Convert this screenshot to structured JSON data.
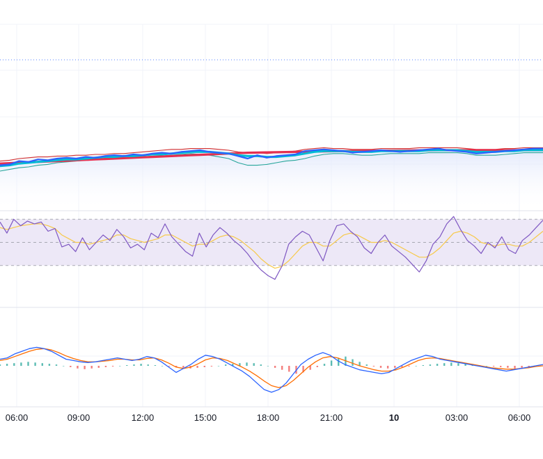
{
  "chart_data": {
    "type": "line",
    "x_tick_labels": [
      "06:00",
      "09:00",
      "12:00",
      "15:00",
      "18:00",
      "21:00",
      "10",
      "03:00",
      "06:00"
    ],
    "bold_tick_labels": [
      "10"
    ],
    "grid": true,
    "panes": [
      {
        "name": "price",
        "bands": [
          {
            "fill": "#eef1fb"
          }
        ],
        "series": [
          {
            "color": "#2962ff",
            "width": 2.2,
            "values": [
              0.52,
              0.53,
              0.57,
              0.56,
              0.59,
              0.58,
              0.6,
              0.61,
              0.6,
              0.62,
              0.61,
              0.63,
              0.64,
              0.63,
              0.65,
              0.64,
              0.66,
              0.67,
              0.66,
              0.68,
              0.69,
              0.7,
              0.68,
              0.67,
              0.66,
              0.63,
              0.6,
              0.64,
              0.61,
              0.63,
              0.64,
              0.65,
              0.69,
              0.7,
              0.71,
              0.7,
              0.69,
              0.67,
              0.68,
              0.69,
              0.7,
              0.69,
              0.68,
              0.69,
              0.7,
              0.71,
              0.72,
              0.7,
              0.69,
              0.68,
              0.66,
              0.67,
              0.68,
              0.69,
              0.7,
              0.71,
              0.72,
              0.72
            ]
          },
          {
            "color": "#00bcd4",
            "width": 3,
            "values": [
              0.51,
              0.52,
              0.54,
              0.55,
              0.56,
              0.57,
              0.58,
              0.59,
              0.59,
              0.6,
              0.61,
              0.62,
              0.62,
              0.63,
              0.63,
              0.64,
              0.65,
              0.65,
              0.66,
              0.67,
              0.68,
              0.68,
              0.68,
              0.67,
              0.66,
              0.64,
              0.63,
              0.63,
              0.62,
              0.62,
              0.63,
              0.64,
              0.66,
              0.68,
              0.69,
              0.69,
              0.69,
              0.68,
              0.68,
              0.68,
              0.69,
              0.69,
              0.69,
              0.69,
              0.69,
              0.7,
              0.7,
              0.7,
              0.7,
              0.69,
              0.68,
              0.68,
              0.68,
              0.69,
              0.69,
              0.7,
              0.7,
              0.7
            ]
          },
          {
            "color": "#d32f2f",
            "width": 1.1,
            "values": [
              0.57,
              0.58,
              0.6,
              0.61,
              0.62,
              0.62,
              0.63,
              0.63,
              0.64,
              0.64,
              0.65,
              0.65,
              0.66,
              0.66,
              0.67,
              0.68,
              0.69,
              0.7,
              0.71,
              0.71,
              0.72,
              0.72,
              0.72,
              0.71,
              0.7,
              0.68,
              0.67,
              0.67,
              0.66,
              0.67,
              0.68,
              0.69,
              0.71,
              0.72,
              0.73,
              0.72,
              0.72,
              0.71,
              0.71,
              0.71,
              0.72,
              0.72,
              0.72,
              0.72,
              0.73,
              0.73,
              0.73,
              0.73,
              0.73,
              0.72,
              0.71,
              0.71,
              0.71,
              0.72,
              0.72,
              0.73,
              0.73,
              0.73
            ]
          },
          {
            "color": "#26a69a",
            "width": 1.1,
            "values": [
              0.45,
              0.47,
              0.49,
              0.5,
              0.52,
              0.53,
              0.55,
              0.56,
              0.57,
              0.58,
              0.59,
              0.6,
              0.6,
              0.61,
              0.61,
              0.62,
              0.63,
              0.63,
              0.64,
              0.65,
              0.66,
              0.65,
              0.64,
              0.62,
              0.6,
              0.55,
              0.52,
              0.52,
              0.53,
              0.55,
              0.57,
              0.58,
              0.6,
              0.63,
              0.65,
              0.66,
              0.66,
              0.65,
              0.64,
              0.64,
              0.65,
              0.66,
              0.66,
              0.66,
              0.66,
              0.67,
              0.67,
              0.67,
              0.67,
              0.66,
              0.64,
              0.64,
              0.64,
              0.65,
              0.66,
              0.67,
              0.67,
              0.67
            ]
          },
          {
            "color": "#e53050",
            "width": 3.2,
            "values": [
              0.54,
              0.545,
              0.55,
              0.555,
              0.56,
              0.565,
              0.57,
              0.575,
              0.58,
              0.585,
              0.59,
              0.595,
              0.6,
              0.605,
              0.61,
              0.615,
              0.62,
              0.625,
              0.63,
              0.635,
              0.64,
              0.645,
              0.65,
              0.655,
              0.66,
              0.665,
              0.67,
              0.672,
              0.674,
              0.676,
              0.678,
              0.68,
              0.682,
              0.684,
              0.686,
              0.688,
              0.69,
              0.691,
              0.692,
              0.693,
              0.694,
              0.695,
              0.696,
              0.697,
              0.698,
              0.699,
              0.7,
              0.7,
              0.7,
              0.7,
              0.7,
              0.7,
              0.7,
              0.7,
              0.7,
              0.7,
              0.7,
              0.7
            ]
          }
        ],
        "ylim": [
          0,
          1
        ]
      },
      {
        "name": "oscillator",
        "band": {
          "low": 25,
          "high": 75,
          "fill": "#ede8f7"
        },
        "series": [
          {
            "color": "#7e57c2",
            "width": 1.2,
            "values": [
              72,
              60,
              75,
              68,
              73,
              70,
              72,
              62,
              65,
              45,
              48,
              40,
              55,
              42,
              50,
              58,
              52,
              64,
              56,
              44,
              48,
              42,
              60,
              55,
              70,
              56,
              48,
              40,
              35,
              60,
              45,
              58,
              66,
              60,
              52,
              46,
              38,
              28,
              20,
              14,
              10,
              24,
              48,
              56,
              62,
              58,
              44,
              30,
              52,
              68,
              70,
              62,
              56,
              44,
              38,
              50,
              58,
              46,
              40,
              34,
              26,
              18,
              30,
              48,
              56,
              70,
              78,
              64,
              52,
              46,
              38,
              50,
              44,
              56,
              42,
              38,
              52,
              58,
              66,
              74
            ]
          },
          {
            "color": "#f7c948",
            "width": 1.2,
            "values": [
              66,
              64,
              66,
              68,
              69,
              70,
              70,
              68,
              65,
              58,
              54,
              50,
              50,
              48,
              50,
              52,
              54,
              58,
              58,
              54,
              52,
              50,
              52,
              54,
              58,
              58,
              54,
              50,
              46,
              48,
              48,
              52,
              56,
              58,
              56,
              52,
              46,
              40,
              32,
              26,
              22,
              24,
              30,
              38,
              46,
              50,
              50,
              46,
              46,
              52,
              58,
              60,
              58,
              54,
              50,
              50,
              52,
              50,
              46,
              42,
              38,
              34,
              34,
              38,
              44,
              52,
              60,
              62,
              60,
              56,
              50,
              48,
              46,
              48,
              48,
              46,
              46,
              50,
              56,
              62
            ]
          }
        ],
        "ylim": [
          0,
          100
        ]
      },
      {
        "name": "histogram-oscillator",
        "histogram": [
          0.02,
          0.03,
          0.04,
          0.05,
          0.06,
          0.05,
          0.04,
          0.03,
          0.02,
          0.0,
          -0.02,
          -0.04,
          -0.05,
          -0.04,
          -0.03,
          -0.02,
          -0.01,
          0.0,
          0.01,
          0.02,
          0.03,
          0.02,
          0.01,
          0.0,
          -0.01,
          -0.02,
          -0.03,
          -0.04,
          -0.03,
          -0.02,
          -0.01,
          0.0,
          0.02,
          0.03,
          0.04,
          0.05,
          0.04,
          0.02,
          0.0,
          -0.03,
          -0.06,
          -0.09,
          -0.12,
          -0.1,
          -0.06,
          -0.02,
          0.03,
          0.08,
          0.12,
          0.14,
          0.1,
          0.06,
          0.02,
          -0.01,
          -0.03,
          -0.04,
          -0.03,
          -0.02,
          -0.01,
          0.0,
          0.01,
          0.02,
          0.03,
          0.04,
          0.05,
          0.04,
          0.03,
          0.02,
          0.01,
          0.0,
          -0.01,
          -0.02,
          -0.03,
          -0.04,
          -0.03,
          -0.02,
          -0.01,
          0.0
        ],
        "histogram_colors": {
          "up": "#26a69a",
          "down": "#ef5350"
        },
        "series": [
          {
            "color": "#2962ff",
            "width": 1.3,
            "values": [
              0.1,
              0.12,
              0.18,
              0.22,
              0.26,
              0.28,
              0.26,
              0.22,
              0.16,
              0.1,
              0.08,
              0.06,
              0.05,
              0.06,
              0.08,
              0.1,
              0.12,
              0.1,
              0.08,
              0.1,
              0.14,
              0.12,
              0.06,
              -0.02,
              -0.1,
              -0.04,
              0.02,
              0.1,
              0.16,
              0.14,
              0.1,
              0.04,
              -0.02,
              -0.08,
              -0.16,
              -0.26,
              -0.36,
              -0.4,
              -0.36,
              -0.26,
              -0.12,
              0.02,
              0.1,
              0.16,
              0.2,
              0.16,
              0.08,
              0.02,
              -0.02,
              -0.06,
              -0.08,
              -0.1,
              -0.12,
              -0.1,
              -0.04,
              0.02,
              0.08,
              0.12,
              0.16,
              0.14,
              0.1,
              0.08,
              0.06,
              0.04,
              0.02,
              0.0,
              -0.02,
              -0.04,
              -0.06,
              -0.08,
              -0.06,
              -0.04,
              -0.02,
              0.0,
              0.02
            ]
          },
          {
            "color": "#ff6d00",
            "width": 1.3,
            "values": [
              0.08,
              0.1,
              0.14,
              0.18,
              0.22,
              0.25,
              0.26,
              0.24,
              0.2,
              0.15,
              0.11,
              0.08,
              0.06,
              0.06,
              0.07,
              0.08,
              0.1,
              0.1,
              0.09,
              0.09,
              0.11,
              0.12,
              0.09,
              0.04,
              -0.02,
              -0.04,
              -0.02,
              0.03,
              0.09,
              0.12,
              0.11,
              0.08,
              0.03,
              -0.02,
              -0.08,
              -0.15,
              -0.23,
              -0.3,
              -0.33,
              -0.3,
              -0.22,
              -0.12,
              -0.02,
              0.06,
              0.12,
              0.14,
              0.12,
              0.08,
              0.04,
              0.0,
              -0.03,
              -0.06,
              -0.08,
              -0.08,
              -0.06,
              -0.02,
              0.03,
              0.08,
              0.11,
              0.12,
              0.11,
              0.09,
              0.07,
              0.05,
              0.03,
              0.01,
              -0.01,
              -0.03,
              -0.04,
              -0.05,
              -0.05,
              -0.04,
              -0.03,
              -0.01,
              0.0
            ]
          }
        ],
        "ylim": [
          -0.45,
          0.45
        ]
      }
    ]
  }
}
